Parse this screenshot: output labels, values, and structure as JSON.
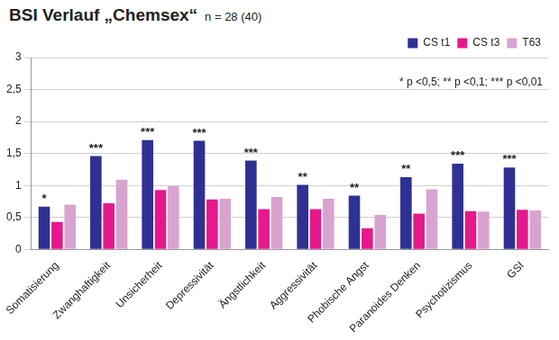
{
  "chart_data": {
    "type": "bar",
    "title": "BSI Verlauf „Chemsex“",
    "subtitle": "n = 28 (40)",
    "annotations": [
      "* p <0,5; ** p <0,1; *** p <0,01"
    ],
    "categories": [
      "Somatisierung",
      "Zwanghaftigkeit",
      "Unsicherheit",
      "Depressivität",
      "Ängstlichkeit",
      "Aggressivität",
      "Phobische Angst",
      "Paranoides Denken",
      "Psychotizismus",
      "GSI"
    ],
    "significance": [
      "*",
      "***",
      "***",
      "***",
      "***",
      "**",
      "**",
      "**",
      "***",
      "***"
    ],
    "series": [
      {
        "name": "CS t1",
        "color": "#2E3192",
        "values": [
          0.67,
          1.46,
          1.71,
          1.7,
          1.39,
          1.01,
          0.84,
          1.13,
          1.34,
          1.28
        ]
      },
      {
        "name": "CS t3",
        "color": "#E6198C",
        "values": [
          0.43,
          0.72,
          0.93,
          0.78,
          0.63,
          0.63,
          0.33,
          0.56,
          0.6,
          0.62
        ]
      },
      {
        "name": "T63",
        "color": "#D8A4CF",
        "values": [
          0.7,
          1.09,
          0.99,
          0.79,
          0.82,
          0.79,
          0.54,
          0.94,
          0.59,
          0.61
        ]
      }
    ],
    "ylim": [
      0,
      3
    ],
    "yticks": [
      0,
      {
        "value": 0.5,
        "label": "0,5"
      },
      1,
      {
        "value": 1.5,
        "label": "1,5"
      },
      2,
      {
        "value": 2.5,
        "label": "2,5"
      },
      3
    ],
    "grid": true,
    "legend": "top-right"
  }
}
